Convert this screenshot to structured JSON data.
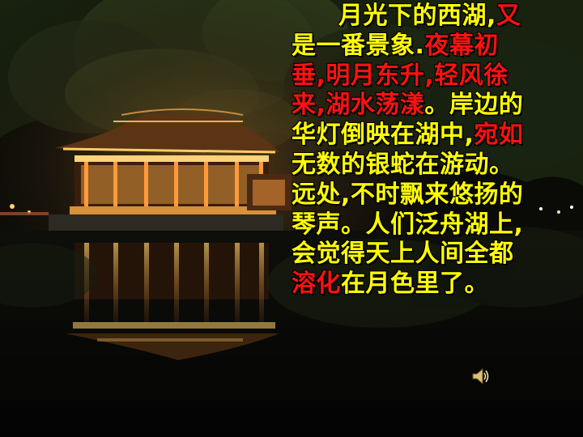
{
  "slide": {
    "lines": [
      [
        {
          "t": "月光下的西湖,",
          "c": "y"
        },
        {
          "t": "又",
          "c": "r"
        }
      ],
      [
        {
          "t": "是一番景象.",
          "c": "y"
        },
        {
          "t": "夜幕初",
          "c": "r"
        }
      ],
      [
        {
          "t": "垂,明月东升,轻风徐",
          "c": "r"
        }
      ],
      [
        {
          "t": "来,湖水荡漾",
          "c": "r"
        },
        {
          "t": "。岸边的",
          "c": "y"
        }
      ],
      [
        {
          "t": "华灯倒映在湖中,",
          "c": "y"
        },
        {
          "t": "宛如",
          "c": "r"
        }
      ],
      [
        {
          "t": "无数的银蛇在游动。",
          "c": "y"
        }
      ],
      [
        {
          "t": "远处,不时飘来悠扬的",
          "c": "y"
        }
      ],
      [
        {
          "t": "琴声。人们泛舟湖上,",
          "c": "y"
        }
      ],
      [
        {
          "t": "会觉得天上人间全都",
          "c": "y"
        }
      ],
      [
        {
          "t": "溶化",
          "c": "r"
        },
        {
          "t": "在月色里了。",
          "c": "y"
        }
      ]
    ],
    "speaker_icon": "speaker-icon",
    "colors": {
      "yellow": "#ffff00",
      "red": "#ff1111",
      "background": "#060604"
    }
  }
}
